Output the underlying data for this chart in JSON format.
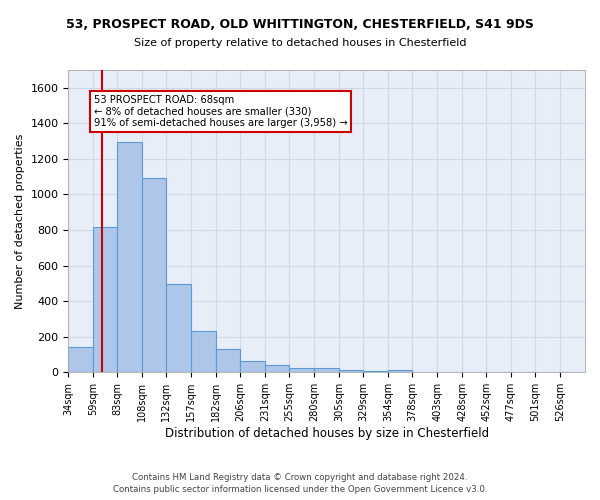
{
  "title1": "53, PROSPECT ROAD, OLD WHITTINGTON, CHESTERFIELD, S41 9DS",
  "title2": "Size of property relative to detached houses in Chesterfield",
  "xlabel": "Distribution of detached houses by size in Chesterfield",
  "ylabel": "Number of detached properties",
  "footer1": "Contains HM Land Registry data © Crown copyright and database right 2024.",
  "footer2": "Contains public sector information licensed under the Open Government Licence v3.0.",
  "bin_labels": [
    "34sqm",
    "59sqm",
    "83sqm",
    "108sqm",
    "132sqm",
    "157sqm",
    "182sqm",
    "206sqm",
    "231sqm",
    "255sqm",
    "280sqm",
    "305sqm",
    "329sqm",
    "354sqm",
    "378sqm",
    "403sqm",
    "428sqm",
    "452sqm",
    "477sqm",
    "501sqm",
    "526sqm"
  ],
  "bar_values": [
    140,
    815,
    1295,
    1095,
    495,
    230,
    130,
    65,
    40,
    25,
    25,
    15,
    5,
    15,
    3,
    3,
    2,
    2,
    2,
    2,
    2
  ],
  "bar_color": "#aec6e8",
  "bar_edgecolor": "#5b9bd5",
  "bar_linewidth": 0.8,
  "vline_x": 68,
  "vline_color": "#cc0000",
  "vline_linewidth": 1.5,
  "annotation_line1": "53 PROSPECT ROAD: 68sqm",
  "annotation_line2": "← 8% of detached houses are smaller (330)",
  "annotation_line3": "91% of semi-detached houses are larger (3,958) →",
  "annotation_box_color": "#cc0000",
  "ylim": [
    0,
    1700
  ],
  "yticks": [
    0,
    200,
    400,
    600,
    800,
    1000,
    1200,
    1400,
    1600
  ],
  "grid_color": "#d0d8e8",
  "background_color": "#e8eef8"
}
